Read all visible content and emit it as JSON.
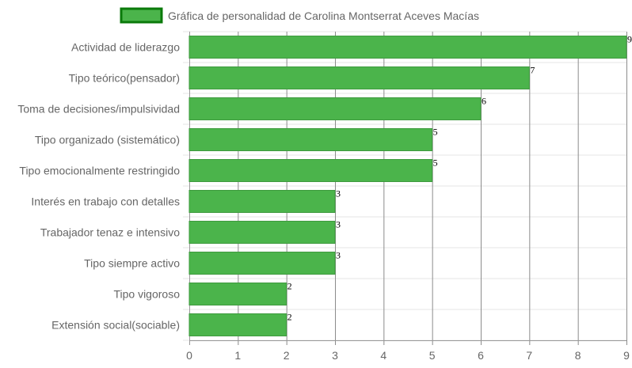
{
  "chart_data": {
    "type": "bar",
    "orientation": "horizontal",
    "title": "",
    "xlabel": "",
    "ylabel": "",
    "categories": [
      "Actividad de liderazgo",
      "Tipo teórico(pensador)",
      "Toma de decisiones/impulsividad",
      "Tipo organizado (sistemático)",
      "Tipo emocionalmente restringido",
      "Interés en trabajo con detalles",
      "Trabajador tenaz e intensivo",
      "Tipo siempre activo",
      "Tipo vigoroso",
      "Extensión social(sociable)"
    ],
    "series": [
      {
        "name": "Gráfica de personalidad de Carolina Montserrat Aceves Macías",
        "values": [
          9,
          7,
          6,
          5,
          5,
          3,
          3,
          3,
          2,
          2
        ],
        "color": "#4bb44b",
        "border_color": "#3e9a3e"
      }
    ],
    "x_ticks": [
      "0",
      "1",
      "2",
      "3",
      "4",
      "5",
      "6",
      "7",
      "8",
      "9"
    ],
    "xlim": [
      0,
      9
    ],
    "grid": true,
    "legend_position": "top",
    "legend_swatch_color": "#4bb44b",
    "legend_swatch_border": "#0a7a0a",
    "value_labels": true
  }
}
